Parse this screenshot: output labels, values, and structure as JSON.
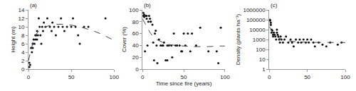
{
  "chart_data": [
    {
      "type": "scatter",
      "ylabel": "Height (m)",
      "annotations": [
        "(a)"
      ],
      "xlim": [
        0,
        100
      ],
      "xticks": [
        0,
        50,
        100
      ],
      "ylim": [
        0,
        14
      ],
      "yticks": [
        0,
        2,
        4,
        6,
        8,
        10,
        12,
        14
      ],
      "grid": false,
      "series": [
        {
          "type": "scatter",
          "color": "#111111",
          "x": [
            1,
            1,
            2,
            3,
            4,
            5,
            5,
            6,
            7,
            8,
            8,
            9,
            10,
            10,
            11,
            12,
            13,
            14,
            15,
            16,
            17,
            18,
            20,
            22,
            25,
            27,
            28,
            30,
            32,
            35,
            38,
            40,
            42,
            45,
            50,
            52,
            55,
            58,
            60,
            65,
            70,
            90
          ],
          "values": [
            0.5,
            1.5,
            1,
            5,
            4,
            5,
            6,
            7,
            6,
            7,
            8,
            8,
            7,
            9,
            8,
            12,
            10,
            8,
            6,
            10,
            9,
            11,
            10,
            12,
            10,
            9,
            11,
            10,
            8,
            10,
            12,
            10,
            9,
            10,
            10,
            12,
            10,
            8,
            6,
            10,
            10,
            12
          ]
        },
        {
          "type": "line",
          "color": "#444444",
          "line_style": "dashed",
          "x": [
            0,
            5,
            10,
            15,
            20,
            25,
            30,
            35,
            40,
            45,
            50,
            55,
            60,
            65,
            70,
            75,
            80,
            85,
            90,
            95,
            100
          ],
          "values": [
            2,
            6,
            8.5,
            9.5,
            10,
            10.3,
            10.5,
            10.6,
            10.6,
            10.5,
            10.4,
            10.2,
            10.0,
            9.7,
            9.4,
            9.1,
            8.7,
            8.3,
            7.8,
            7.3,
            6.8
          ]
        }
      ]
    },
    {
      "type": "scatter",
      "xlabel": "Time since fire (years)",
      "ylabel": "Cover (%)",
      "annotations": [
        "(b)"
      ],
      "xlim": [
        0,
        100
      ],
      "xticks": [
        0,
        50,
        100
      ],
      "ylim": [
        0,
        100
      ],
      "yticks": [
        0,
        20,
        40,
        60,
        80,
        100
      ],
      "grid": false,
      "series": [
        {
          "type": "scatter",
          "color": "#111111",
          "x": [
            1,
            1,
            2,
            2,
            3,
            4,
            5,
            5,
            6,
            7,
            8,
            9,
            10,
            10,
            12,
            13,
            14,
            15,
            16,
            17,
            18,
            20,
            22,
            24,
            25,
            26,
            28,
            30,
            30,
            32,
            35,
            36,
            38,
            40,
            42,
            45,
            47,
            48,
            50,
            52,
            55,
            58,
            60,
            65,
            70,
            80,
            90,
            92,
            95
          ],
          "values": [
            90,
            95,
            92,
            88,
            30,
            90,
            90,
            85,
            40,
            80,
            90,
            85,
            80,
            80,
            75,
            45,
            15,
            60,
            65,
            40,
            10,
            50,
            40,
            40,
            40,
            45,
            15,
            40,
            15,
            40,
            40,
            20,
            60,
            40,
            40,
            40,
            30,
            30,
            60,
            40,
            60,
            30,
            60,
            40,
            70,
            30,
            30,
            10,
            70
          ]
        },
        {
          "type": "line",
          "color": "#444444",
          "line_style": "dashed",
          "x": [
            0,
            5,
            10,
            15,
            20,
            25,
            30,
            35,
            40,
            45,
            50,
            55,
            60,
            65,
            70,
            75,
            80,
            85,
            90,
            95,
            100
          ],
          "values": [
            85,
            72,
            60,
            52,
            48,
            45,
            42,
            41,
            40,
            39.5,
            39,
            38.5,
            38,
            38,
            38,
            38,
            38,
            38.5,
            39,
            39,
            39
          ]
        }
      ]
    },
    {
      "type": "scatter",
      "ylabel": "Density (plants ha⁻¹)",
      "annotations": [
        "(c)"
      ],
      "log": "y",
      "xlim": [
        0,
        100
      ],
      "xticks": [
        0,
        50,
        100
      ],
      "ylim": [
        1,
        1000000
      ],
      "yticks": [
        1,
        10,
        100,
        1000,
        10000,
        100000,
        1000000
      ],
      "grid": false,
      "series": [
        {
          "type": "scatter",
          "color": "#111111",
          "x": [
            1,
            1,
            2,
            2,
            3,
            3,
            4,
            5,
            5,
            6,
            7,
            8,
            9,
            10,
            10,
            11,
            12,
            13,
            14,
            15,
            16,
            18,
            20,
            22,
            25,
            28,
            30,
            32,
            35,
            38,
            40,
            42,
            45,
            48,
            50,
            52,
            55,
            58,
            60,
            65,
            70,
            75,
            80,
            90,
            95
          ],
          "values": [
            100000,
            80000,
            50000,
            30000,
            10000,
            5000,
            8000,
            3000,
            2000,
            5000,
            3000,
            2000,
            1000,
            5000,
            10000,
            3000,
            2000,
            1000,
            500,
            2000,
            1000,
            500,
            1000,
            2000,
            500,
            1000,
            500,
            200,
            1000,
            500,
            1000,
            500,
            1000,
            500,
            1000,
            500,
            1000,
            500,
            200,
            500,
            300,
            200,
            500,
            300,
            500
          ]
        },
        {
          "type": "line",
          "color": "#444444",
          "line_style": "dashed",
          "x": [
            0,
            5,
            10,
            15,
            20,
            25,
            30,
            35,
            40,
            45,
            50,
            55,
            60,
            65,
            70,
            75,
            80,
            85,
            90,
            95,
            100
          ],
          "values": [
            20000,
            5000,
            2000,
            1200,
            900,
            750,
            650,
            600,
            570,
            550,
            530,
            520,
            510,
            505,
            500,
            498,
            496,
            495,
            494,
            493,
            492
          ]
        }
      ]
    }
  ]
}
